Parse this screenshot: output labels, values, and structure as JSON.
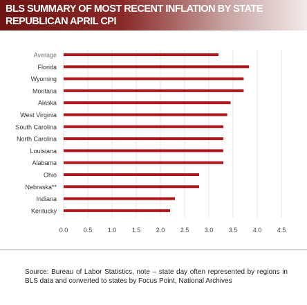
{
  "header": {
    "title": "BLS SUMMARY OF MOST RECENT INFLATION BY STATE\nREPUBLICAN APRIL CPI"
  },
  "chart_data": {
    "type": "bar",
    "orientation": "horizontal",
    "title": "BLS SUMMARY OF MOST RECENT INFLATION BY STATE\nREPUBLICAN APRIL CPI",
    "categories": [
      "Average",
      "Florida",
      "Wyoming",
      "Montana",
      "Alaska",
      "West Virginia",
      "South Carolina",
      "North Carolina",
      "Louisiana",
      "Alabama",
      "Ohio",
      "Nebraska**",
      "Indiana",
      "Kentucky"
    ],
    "values": [
      3.2,
      3.83,
      3.72,
      3.72,
      3.45,
      3.38,
      3.3,
      3.3,
      3.3,
      3.3,
      2.8,
      2.8,
      2.3,
      2.2
    ],
    "xlim": [
      0,
      4.5
    ],
    "xticks": [
      0.0,
      0.5,
      1.0,
      1.5,
      2.0,
      2.5,
      3.0,
      3.5,
      4.0,
      4.5
    ],
    "xtick_labels": [
      "0.0",
      "0.5",
      "1.0",
      "1.5",
      "2.0",
      "2.5",
      "3.0",
      "3.5",
      "4.0",
      "4.5"
    ],
    "grid": true,
    "bar_color": "#b0151b",
    "label_color": "#333333",
    "average_label_color": "#777777"
  },
  "source": "Source: Bureau of Labor Statistics, note – state day often represented by regions in BLS data and converted to states by Focus Point, National Archives"
}
